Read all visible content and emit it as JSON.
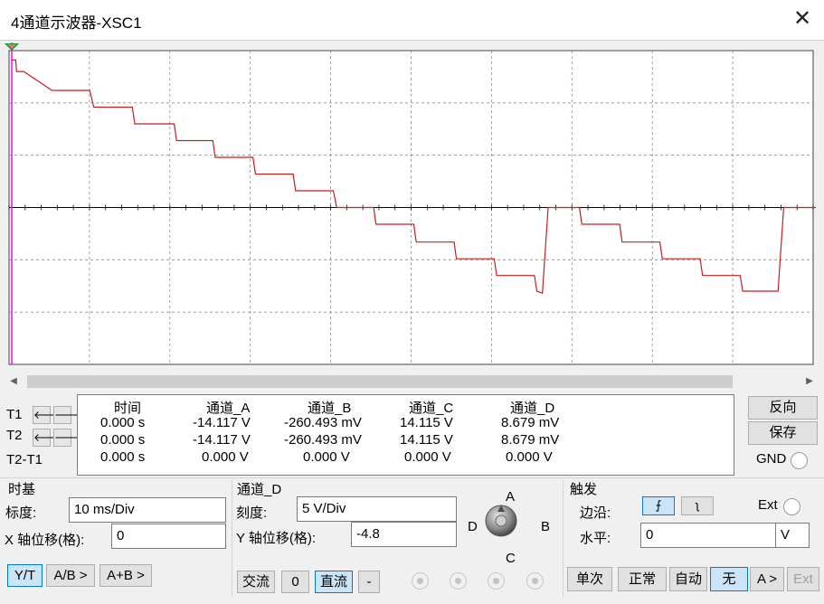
{
  "window": {
    "title": "4通道示波器-XSC1",
    "close_glyph": "✕"
  },
  "cursor_rows": [
    {
      "label": "T1"
    },
    {
      "label": "T2"
    },
    {
      "label": "T2-T1"
    }
  ],
  "readout": {
    "headers": [
      "时间",
      "通道_A",
      "通道_B",
      "通道_C",
      "通道_D"
    ],
    "rows": [
      [
        "0.000 s",
        "-14.117 V",
        "-260.493 mV",
        "14.115 V",
        "8.679 mV"
      ],
      [
        "0.000 s",
        "-14.117 V",
        "-260.493 mV",
        "14.115 V",
        "8.679 mV"
      ],
      [
        "0.000 s",
        "0.000 V",
        "0.000 V",
        "0.000 V",
        "0.000 V"
      ]
    ]
  },
  "side_buttons": {
    "reverse": "反向",
    "save": "保存",
    "gnd": "GND"
  },
  "timebase": {
    "title": "时基",
    "scale_label": "标度:",
    "scale_value": "10 ms/Div",
    "xpos_label": "X 轴位移(格):",
    "xpos_value": "0",
    "buttons": [
      "Y/T",
      "A/B >",
      "A+B >"
    ]
  },
  "channel": {
    "title": "通道_D",
    "scale_label": "刻度:",
    "scale_value": "5  V/Div",
    "ypos_label": "Y 轴位移(格):",
    "ypos_value": "-4.8",
    "coupling_buttons": [
      "交流",
      "0",
      "直流",
      "-"
    ]
  },
  "knob": {
    "labels": {
      "A": "A",
      "B": "B",
      "C": "C",
      "D": "D"
    }
  },
  "trigger": {
    "title": "触发",
    "edge_label": "边沿:",
    "ext_label": "Ext",
    "level_label": "水平:",
    "level_value": "0",
    "level_unit": "V",
    "mode_buttons": [
      "单次",
      "正常",
      "自动",
      "无",
      "A >",
      "Ext"
    ]
  },
  "colors": {
    "trace": "#c81e1e",
    "grid": "#8c8c8c",
    "cursor": "#ff00ff",
    "active_button": "#cce4f7"
  },
  "waveform": {
    "x_divisions": 10,
    "y_divisions": 6,
    "time_per_div_ms": 10,
    "volts_per_div": 5,
    "samples": [
      {
        "t_ms": 0,
        "v": 14.1
      },
      {
        "t_ms": 0.5,
        "v": 14.1
      },
      {
        "t_ms": 0.6,
        "v": 13.0
      },
      {
        "t_ms": 1.5,
        "v": 13.0
      },
      {
        "t_ms": 5.0,
        "v": 11.2
      },
      {
        "t_ms": 9.7,
        "v": 11.2
      },
      {
        "t_ms": 10.2,
        "v": 9.6
      },
      {
        "t_ms": 15.0,
        "v": 9.6
      },
      {
        "t_ms": 15.3,
        "v": 8.0
      },
      {
        "t_ms": 20.2,
        "v": 8.0
      },
      {
        "t_ms": 20.5,
        "v": 6.4
      },
      {
        "t_ms": 25.0,
        "v": 6.4
      },
      {
        "t_ms": 25.3,
        "v": 4.8
      },
      {
        "t_ms": 30.0,
        "v": 4.8
      },
      {
        "t_ms": 30.3,
        "v": 3.2
      },
      {
        "t_ms": 35.0,
        "v": 3.2
      },
      {
        "t_ms": 35.3,
        "v": 1.6
      },
      {
        "t_ms": 40.0,
        "v": 1.6
      },
      {
        "t_ms": 40.4,
        "v": 0.0
      },
      {
        "t_ms": 45.0,
        "v": 0.0
      },
      {
        "t_ms": 45.3,
        "v": -1.6
      },
      {
        "t_ms": 50.0,
        "v": -1.6
      },
      {
        "t_ms": 50.3,
        "v": -3.3
      },
      {
        "t_ms": 55.0,
        "v": -3.3
      },
      {
        "t_ms": 55.3,
        "v": -4.9
      },
      {
        "t_ms": 60.0,
        "v": -4.9
      },
      {
        "t_ms": 60.3,
        "v": -6.5
      },
      {
        "t_ms": 65.0,
        "v": -6.5
      },
      {
        "t_ms": 65.3,
        "v": -8.0
      },
      {
        "t_ms": 66.0,
        "v": -8.2
      },
      {
        "t_ms": 66.7,
        "v": 0.0
      },
      {
        "t_ms": 70.6,
        "v": 0.0
      },
      {
        "t_ms": 70.9,
        "v": -1.6
      },
      {
        "t_ms": 75.6,
        "v": -1.6
      },
      {
        "t_ms": 75.9,
        "v": -3.3
      },
      {
        "t_ms": 80.6,
        "v": -3.3
      },
      {
        "t_ms": 80.9,
        "v": -4.9
      },
      {
        "t_ms": 85.6,
        "v": -4.9
      },
      {
        "t_ms": 85.9,
        "v": -6.5
      },
      {
        "t_ms": 90.6,
        "v": -6.5
      },
      {
        "t_ms": 90.9,
        "v": -8.0
      },
      {
        "t_ms": 95.3,
        "v": -8.0
      },
      {
        "t_ms": 96.0,
        "v": 0.0
      },
      {
        "t_ms": 100,
        "v": 0.0
      }
    ]
  }
}
